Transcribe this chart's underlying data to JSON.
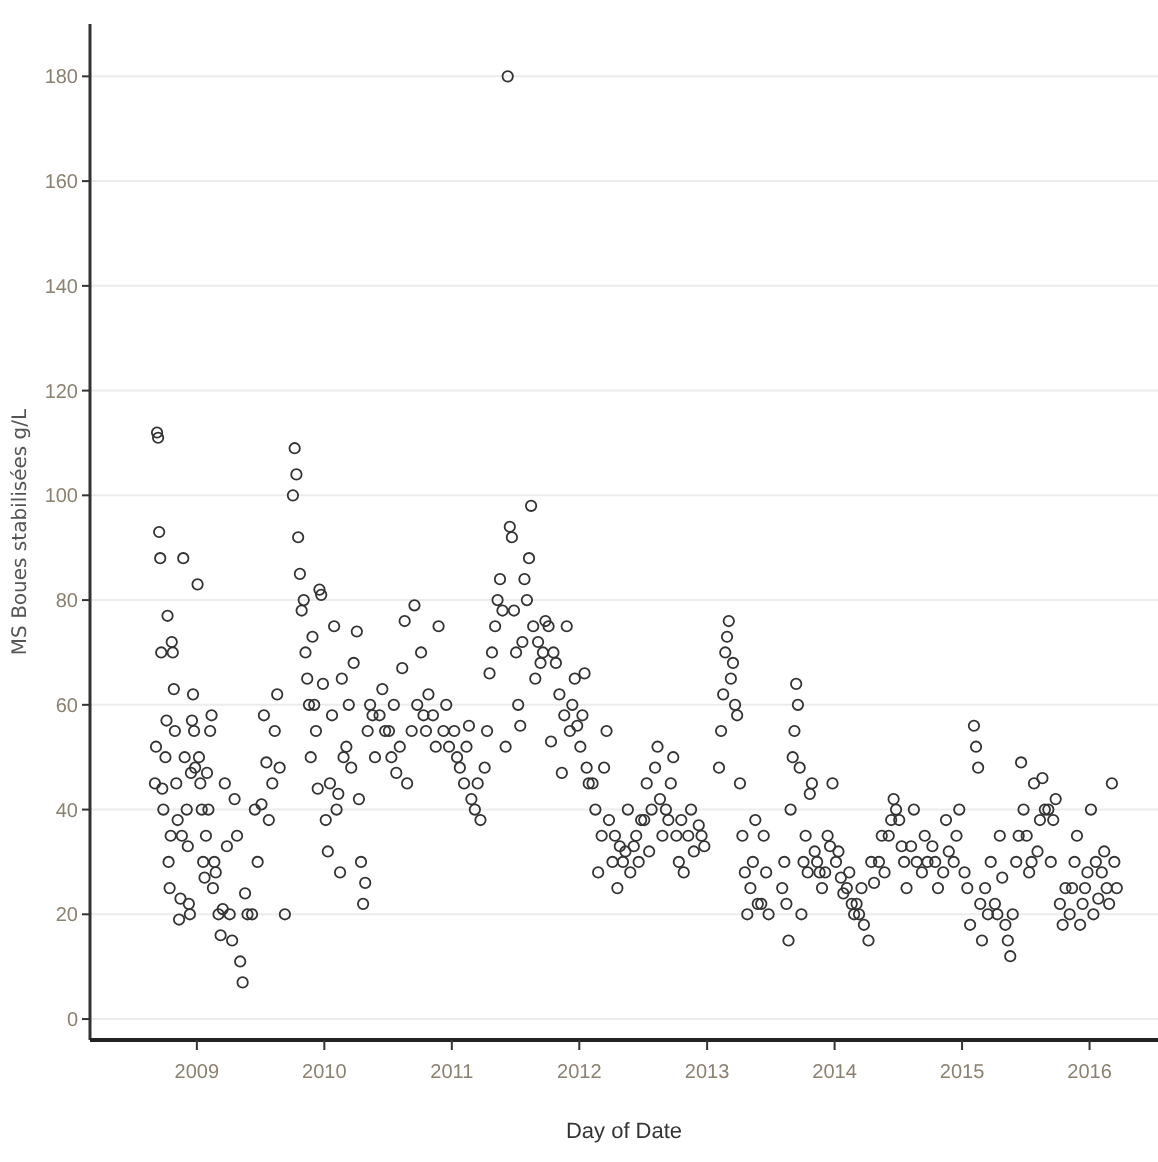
{
  "chart_data": {
    "type": "scatter",
    "xlabel": "Day of Date",
    "ylabel": "MS Boues stabilisées  g/L",
    "xlim": [
      "2008-03-01",
      "2016-07-15"
    ],
    "ylim": [
      -4,
      190
    ],
    "xticks": [
      {
        "value": "2009-01-01",
        "label": "2009"
      },
      {
        "value": "2010-01-01",
        "label": "2010"
      },
      {
        "value": "2011-01-01",
        "label": "2011"
      },
      {
        "value": "2012-01-01",
        "label": "2012"
      },
      {
        "value": "2013-01-01",
        "label": "2013"
      },
      {
        "value": "2014-01-01",
        "label": "2014"
      },
      {
        "value": "2015-01-01",
        "label": "2015"
      },
      {
        "value": "2016-01-01",
        "label": "2016"
      }
    ],
    "yticks": [
      0,
      20,
      40,
      60,
      80,
      100,
      120,
      140,
      160,
      180
    ],
    "grid": "y",
    "marker": "circle",
    "series": [
      {
        "color": "#333333",
        "x": [
          "2008-09-03",
          "2008-09-06",
          "2008-09-09",
          "2008-09-12",
          "2008-09-15",
          "2008-09-18",
          "2008-09-21",
          "2008-09-24",
          "2008-09-27",
          "2008-10-03",
          "2008-10-06",
          "2008-10-09",
          "2008-10-12",
          "2008-10-15",
          "2008-10-18",
          "2008-10-21",
          "2008-10-24",
          "2008-10-27",
          "2008-10-30",
          "2008-11-03",
          "2008-11-07",
          "2008-11-11",
          "2008-11-15",
          "2008-11-19",
          "2008-11-23",
          "2008-11-27",
          "2008-12-03",
          "2008-12-06",
          "2008-12-09",
          "2008-12-12",
          "2008-12-15",
          "2008-12-18",
          "2008-12-21",
          "2008-12-24",
          "2008-12-27",
          "2009-01-03",
          "2009-01-07",
          "2009-01-11",
          "2009-01-15",
          "2009-01-19",
          "2009-01-23",
          "2009-01-27",
          "2009-01-30",
          "2009-02-03",
          "2009-02-08",
          "2009-02-12",
          "2009-02-16",
          "2009-02-20",
          "2009-02-24",
          "2009-03-04",
          "2009-03-10",
          "2009-03-16",
          "2009-03-22",
          "2009-03-28",
          "2009-04-05",
          "2009-04-12",
          "2009-04-19",
          "2009-04-26",
          "2009-05-05",
          "2009-05-12",
          "2009-05-19",
          "2009-05-26",
          "2009-06-08",
          "2009-06-16",
          "2009-06-24",
          "2009-07-05",
          "2009-07-12",
          "2009-07-19",
          "2009-07-26",
          "2009-08-05",
          "2009-08-12",
          "2009-08-19",
          "2009-08-26",
          "2009-09-10",
          "2009-10-03",
          "2009-10-08",
          "2009-10-13",
          "2009-10-18",
          "2009-10-23",
          "2009-10-28",
          "2009-11-03",
          "2009-11-08",
          "2009-11-13",
          "2009-11-18",
          "2009-11-23",
          "2009-11-28",
          "2009-12-03",
          "2009-12-08",
          "2009-12-13",
          "2009-12-18",
          "2009-12-23",
          "2009-12-28",
          "2010-01-05",
          "2010-01-11",
          "2010-01-17",
          "2010-01-23",
          "2010-01-29",
          "2010-02-05",
          "2010-02-10",
          "2010-02-15",
          "2010-02-20",
          "2010-02-25",
          "2010-03-05",
          "2010-03-12",
          "2010-03-19",
          "2010-03-26",
          "2010-04-04",
          "2010-04-10",
          "2010-04-16",
          "2010-04-22",
          "2010-04-28",
          "2010-05-05",
          "2010-05-12",
          "2010-05-19",
          "2010-05-26",
          "2010-06-08",
          "2010-06-16",
          "2010-06-24",
          "2010-07-05",
          "2010-07-12",
          "2010-07-19",
          "2010-07-26",
          "2010-08-05",
          "2010-08-12",
          "2010-08-19",
          "2010-08-26",
          "2010-09-08",
          "2010-09-16",
          "2010-09-24",
          "2010-10-05",
          "2010-10-12",
          "2010-10-19",
          "2010-10-26",
          "2010-11-08",
          "2010-11-16",
          "2010-11-24",
          "2010-12-08",
          "2010-12-16",
          "2010-12-24",
          "2011-01-08",
          "2011-01-16",
          "2011-01-24",
          "2011-02-05",
          "2011-02-12",
          "2011-02-19",
          "2011-02-26",
          "2011-03-08",
          "2011-03-16",
          "2011-03-24",
          "2011-04-05",
          "2011-04-12",
          "2011-04-19",
          "2011-04-26",
          "2011-05-05",
          "2011-05-12",
          "2011-05-19",
          "2011-05-26",
          "2011-06-04",
          "2011-06-10",
          "2011-06-16",
          "2011-06-22",
          "2011-06-28",
          "2011-07-04",
          "2011-07-10",
          "2011-07-16",
          "2011-07-22",
          "2011-07-28",
          "2011-08-04",
          "2011-08-10",
          "2011-08-16",
          "2011-08-22",
          "2011-08-28",
          "2011-09-05",
          "2011-09-12",
          "2011-09-19",
          "2011-09-26",
          "2011-10-05",
          "2011-10-12",
          "2011-10-19",
          "2011-10-26",
          "2011-11-05",
          "2011-11-12",
          "2011-11-19",
          "2011-11-26",
          "2011-12-05",
          "2011-12-12",
          "2011-12-19",
          "2011-12-26",
          "2012-01-04",
          "2012-01-10",
          "2012-01-16",
          "2012-01-22",
          "2012-01-28",
          "2012-02-08",
          "2012-02-16",
          "2012-02-24",
          "2012-03-05",
          "2012-03-12",
          "2012-03-19",
          "2012-03-26",
          "2012-04-05",
          "2012-04-12",
          "2012-04-19",
          "2012-04-26",
          "2012-05-05",
          "2012-05-12",
          "2012-05-19",
          "2012-05-26",
          "2012-06-05",
          "2012-06-12",
          "2012-06-19",
          "2012-06-26",
          "2012-07-05",
          "2012-07-12",
          "2012-07-19",
          "2012-07-26",
          "2012-08-05",
          "2012-08-12",
          "2012-08-19",
          "2012-08-26",
          "2012-09-05",
          "2012-09-12",
          "2012-09-19",
          "2012-09-26",
          "2012-10-05",
          "2012-10-12",
          "2012-10-19",
          "2012-10-26",
          "2012-11-08",
          "2012-11-16",
          "2012-11-24",
          "2012-12-08",
          "2012-12-16",
          "2012-12-24",
          "2013-02-04",
          "2013-02-10",
          "2013-02-16",
          "2013-02-22",
          "2013-02-27",
          "2013-03-04",
          "2013-03-10",
          "2013-03-16",
          "2013-03-22",
          "2013-03-28",
          "2013-04-05",
          "2013-04-12",
          "2013-04-19",
          "2013-04-26",
          "2013-05-05",
          "2013-05-12",
          "2013-05-19",
          "2013-05-26",
          "2013-06-05",
          "2013-06-12",
          "2013-06-19",
          "2013-06-26",
          "2013-08-04",
          "2013-08-10",
          "2013-08-16",
          "2013-08-22",
          "2013-08-28",
          "2013-09-03",
          "2013-09-08",
          "2013-09-13",
          "2013-09-18",
          "2013-09-23",
          "2013-09-28",
          "2013-10-04",
          "2013-10-10",
          "2013-10-16",
          "2013-10-22",
          "2013-10-28",
          "2013-11-05",
          "2013-11-12",
          "2013-11-19",
          "2013-11-26",
          "2013-12-05",
          "2013-12-12",
          "2013-12-19",
          "2013-12-26",
          "2014-01-05",
          "2014-01-12",
          "2014-01-19",
          "2014-01-26",
          "2014-02-05",
          "2014-02-12",
          "2014-02-19",
          "2014-02-26",
          "2014-03-05",
          "2014-03-12",
          "2014-03-19",
          "2014-03-26",
          "2014-04-08",
          "2014-04-16",
          "2014-04-24",
          "2014-05-08",
          "2014-05-16",
          "2014-05-24",
          "2014-06-05",
          "2014-06-12",
          "2014-06-19",
          "2014-06-26",
          "2014-07-05",
          "2014-07-12",
          "2014-07-19",
          "2014-07-26",
          "2014-08-08",
          "2014-08-16",
          "2014-08-24",
          "2014-09-08",
          "2014-09-16",
          "2014-09-24",
          "2014-10-08",
          "2014-10-16",
          "2014-10-24",
          "2014-11-08",
          "2014-11-16",
          "2014-11-24",
          "2014-12-08",
          "2014-12-16",
          "2014-12-24",
          "2015-01-08",
          "2015-01-16",
          "2015-01-24",
          "2015-02-04",
          "2015-02-10",
          "2015-02-16",
          "2015-02-22",
          "2015-02-27",
          "2015-03-08",
          "2015-03-16",
          "2015-03-24",
          "2015-04-05",
          "2015-04-12",
          "2015-04-19",
          "2015-04-26",
          "2015-05-05",
          "2015-05-12",
          "2015-05-19",
          "2015-05-26",
          "2015-06-05",
          "2015-06-12",
          "2015-06-19",
          "2015-06-26",
          "2015-07-05",
          "2015-07-12",
          "2015-07-19",
          "2015-07-26",
          "2015-08-05",
          "2015-08-12",
          "2015-08-19",
          "2015-08-26",
          "2015-09-05",
          "2015-09-12",
          "2015-09-19",
          "2015-09-26",
          "2015-10-08",
          "2015-10-16",
          "2015-10-24",
          "2015-11-05",
          "2015-11-12",
          "2015-11-19",
          "2015-11-26",
          "2015-12-05",
          "2015-12-12",
          "2015-12-19",
          "2015-12-26",
          "2016-01-05",
          "2016-01-12",
          "2016-01-19",
          "2016-01-26",
          "2016-02-05",
          "2016-02-12",
          "2016-02-19",
          "2016-02-26",
          "2016-03-05",
          "2016-03-12",
          "2016-03-19"
        ],
        "values": [
          45,
          52,
          112,
          111,
          93,
          88,
          70,
          44,
          40,
          50,
          57,
          77,
          30,
          25,
          35,
          72,
          70,
          63,
          55,
          45,
          38,
          19,
          23,
          35,
          88,
          50,
          40,
          33,
          22,
          20,
          47,
          57,
          62,
          55,
          48,
          83,
          50,
          45,
          40,
          30,
          27,
          35,
          47,
          40,
          55,
          58,
          25,
          30,
          28,
          20,
          16,
          21,
          45,
          33,
          20,
          15,
          42,
          35,
          11,
          7,
          24,
          20,
          20,
          40,
          30,
          41,
          58,
          49,
          38,
          45,
          55,
          62,
          48,
          20,
          100,
          109,
          104,
          92,
          85,
          78,
          80,
          70,
          65,
          60,
          50,
          73,
          60,
          55,
          44,
          82,
          81,
          64,
          38,
          32,
          45,
          58,
          75,
          40,
          43,
          28,
          65,
          50,
          52,
          60,
          48,
          68,
          74,
          42,
          30,
          22,
          26,
          55,
          60,
          58,
          50,
          58,
          63,
          55,
          55,
          50,
          60,
          47,
          52,
          67,
          76,
          45,
          55,
          79,
          60,
          70,
          58,
          55,
          62,
          58,
          52,
          75,
          55,
          60,
          52,
          55,
          50,
          48,
          45,
          52,
          56,
          42,
          40,
          45,
          38,
          48,
          55,
          66,
          70,
          75,
          80,
          84,
          78,
          52,
          180,
          94,
          92,
          78,
          70,
          60,
          56,
          72,
          84,
          80,
          88,
          98,
          75,
          65,
          72,
          68,
          70,
          76,
          75,
          53,
          70,
          68,
          62,
          47,
          58,
          75,
          55,
          60,
          65,
          56,
          52,
          58,
          66,
          48,
          45,
          45,
          40,
          28,
          35,
          48,
          55,
          38,
          30,
          35,
          25,
          33,
          30,
          32,
          40,
          28,
          33,
          35,
          30,
          38,
          38,
          45,
          32,
          40,
          48,
          52,
          42,
          35,
          40,
          38,
          45,
          50,
          35,
          30,
          38,
          28,
          35,
          40,
          32,
          37,
          35,
          33,
          48,
          55,
          62,
          70,
          73,
          76,
          65,
          68,
          60,
          58,
          45,
          35,
          28,
          20,
          25,
          30,
          38,
          22,
          22,
          35,
          28,
          20,
          25,
          30,
          22,
          15,
          40,
          50,
          55,
          64,
          60,
          48,
          20,
          30,
          35,
          28,
          43,
          45,
          32,
          30,
          28,
          25,
          28,
          35,
          33,
          45,
          30,
          32,
          27,
          24,
          25,
          28,
          22,
          20,
          22,
          20,
          25,
          18,
          15,
          30,
          26,
          30,
          35,
          28,
          35,
          38,
          42,
          40,
          38,
          33,
          30,
          25,
          33,
          40,
          30,
          28,
          35,
          30,
          33,
          30,
          25,
          28,
          38,
          32,
          30,
          35,
          40,
          28,
          25,
          18,
          56,
          52,
          48,
          22,
          15,
          25,
          20,
          30,
          22,
          20,
          35,
          27,
          18,
          15,
          12,
          20,
          30,
          35,
          49,
          40,
          35,
          28,
          30,
          45,
          32,
          38,
          46,
          40,
          40,
          30,
          38,
          42,
          22,
          18,
          25,
          20,
          25,
          30,
          35,
          18,
          22,
          25,
          28,
          40,
          20,
          30,
          23,
          28,
          32,
          25,
          22,
          45,
          30,
          25
        ]
      }
    ]
  }
}
